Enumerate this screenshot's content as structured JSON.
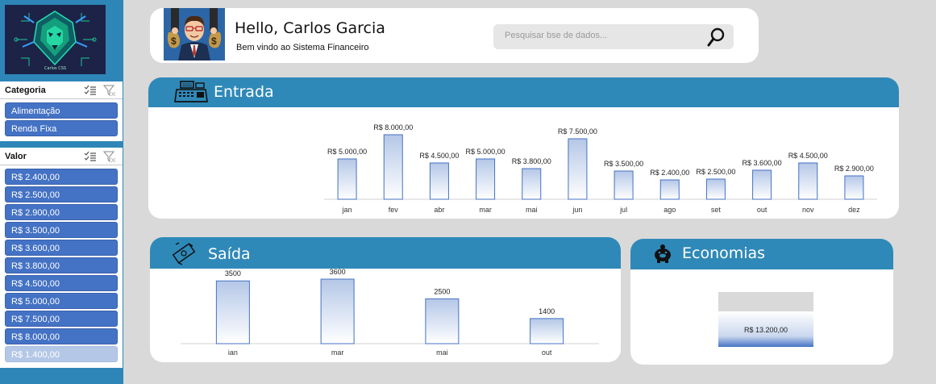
{
  "sidebar": {
    "logo": {
      "caption": "Carlos CSS"
    },
    "category_slicer": {
      "title": "Categoria",
      "items": [
        {
          "label": "Alimentação",
          "selected": true
        },
        {
          "label": "Renda Fixa",
          "selected": true
        }
      ]
    },
    "value_slicer": {
      "title": "Valor",
      "items": [
        {
          "label": "R$ 2.400,00",
          "selected": true
        },
        {
          "label": "R$ 2.500,00",
          "selected": true
        },
        {
          "label": "R$ 2.900,00",
          "selected": true
        },
        {
          "label": "R$ 3.500,00",
          "selected": true
        },
        {
          "label": "R$ 3.600,00",
          "selected": true
        },
        {
          "label": "R$ 3.800,00",
          "selected": true
        },
        {
          "label": "R$ 4.500,00",
          "selected": true
        },
        {
          "label": "R$ 5.000,00",
          "selected": true
        },
        {
          "label": "R$ 7.500,00",
          "selected": true
        },
        {
          "label": "R$ 8.000,00",
          "selected": true
        },
        {
          "label": "R$ 1.400,00",
          "selected": false
        }
      ]
    }
  },
  "header": {
    "greeting": "Hello, Carlos Garcia",
    "subtitle": "Bem vindo ao Sistema Financeiro",
    "search": {
      "placeholder": "Pesquisar bse de dados..."
    }
  },
  "entrada": {
    "title": "Entrada",
    "icon": "cash-register-icon"
  },
  "saida": {
    "title": "Saída",
    "icon": "money-outflow-icon"
  },
  "economias": {
    "title": "Economias",
    "icon": "piggy-bank-icon"
  },
  "colors": {
    "sidebar_bg": "#2e86b8",
    "header_blue": "#2f89b8",
    "slicer_selected": "#4472c4",
    "slicer_unselected": "#b4c7e7",
    "bar_top": "#b4c7e7",
    "bar_bottom": "#ffffff",
    "bar_border": "#4472c4"
  },
  "chart_data": [
    {
      "id": "entrada",
      "type": "bar",
      "categories": [
        "jan",
        "fev",
        "abr",
        "mar",
        "mai",
        "jun",
        "jul",
        "ago",
        "set",
        "out",
        "nov",
        "dez"
      ],
      "values": [
        5000,
        8000,
        4500,
        5000,
        3800,
        7500,
        3500,
        2400,
        2500,
        3600,
        4500,
        2900
      ],
      "data_labels": [
        "R$ 5.000,00",
        "R$ 8.000,00",
        "R$ 4.500,00",
        "R$ 5.000,00",
        "R$ 3.800,00",
        "R$ 7.500,00",
        "R$ 3.500,00",
        "R$ 2.400,00",
        "R$ 2.500,00",
        "R$ 3.600,00",
        "R$ 4.500,00",
        "R$ 2.900,00"
      ],
      "ylim": [
        0,
        8000
      ],
      "grid": false
    },
    {
      "id": "saida",
      "type": "bar",
      "categories": [
        "ian",
        "mar",
        "mai",
        "out"
      ],
      "values": [
        3500,
        3600,
        2500,
        1400
      ],
      "data_labels": [
        "3500",
        "3600",
        "2500",
        "1400"
      ],
      "ylim": [
        0,
        3600
      ],
      "grid": false
    },
    {
      "id": "economias",
      "type": "bar",
      "categories": [
        ""
      ],
      "values": [
        13200
      ],
      "data_labels": [
        "R$ 13.200,00"
      ],
      "grid": false
    }
  ]
}
